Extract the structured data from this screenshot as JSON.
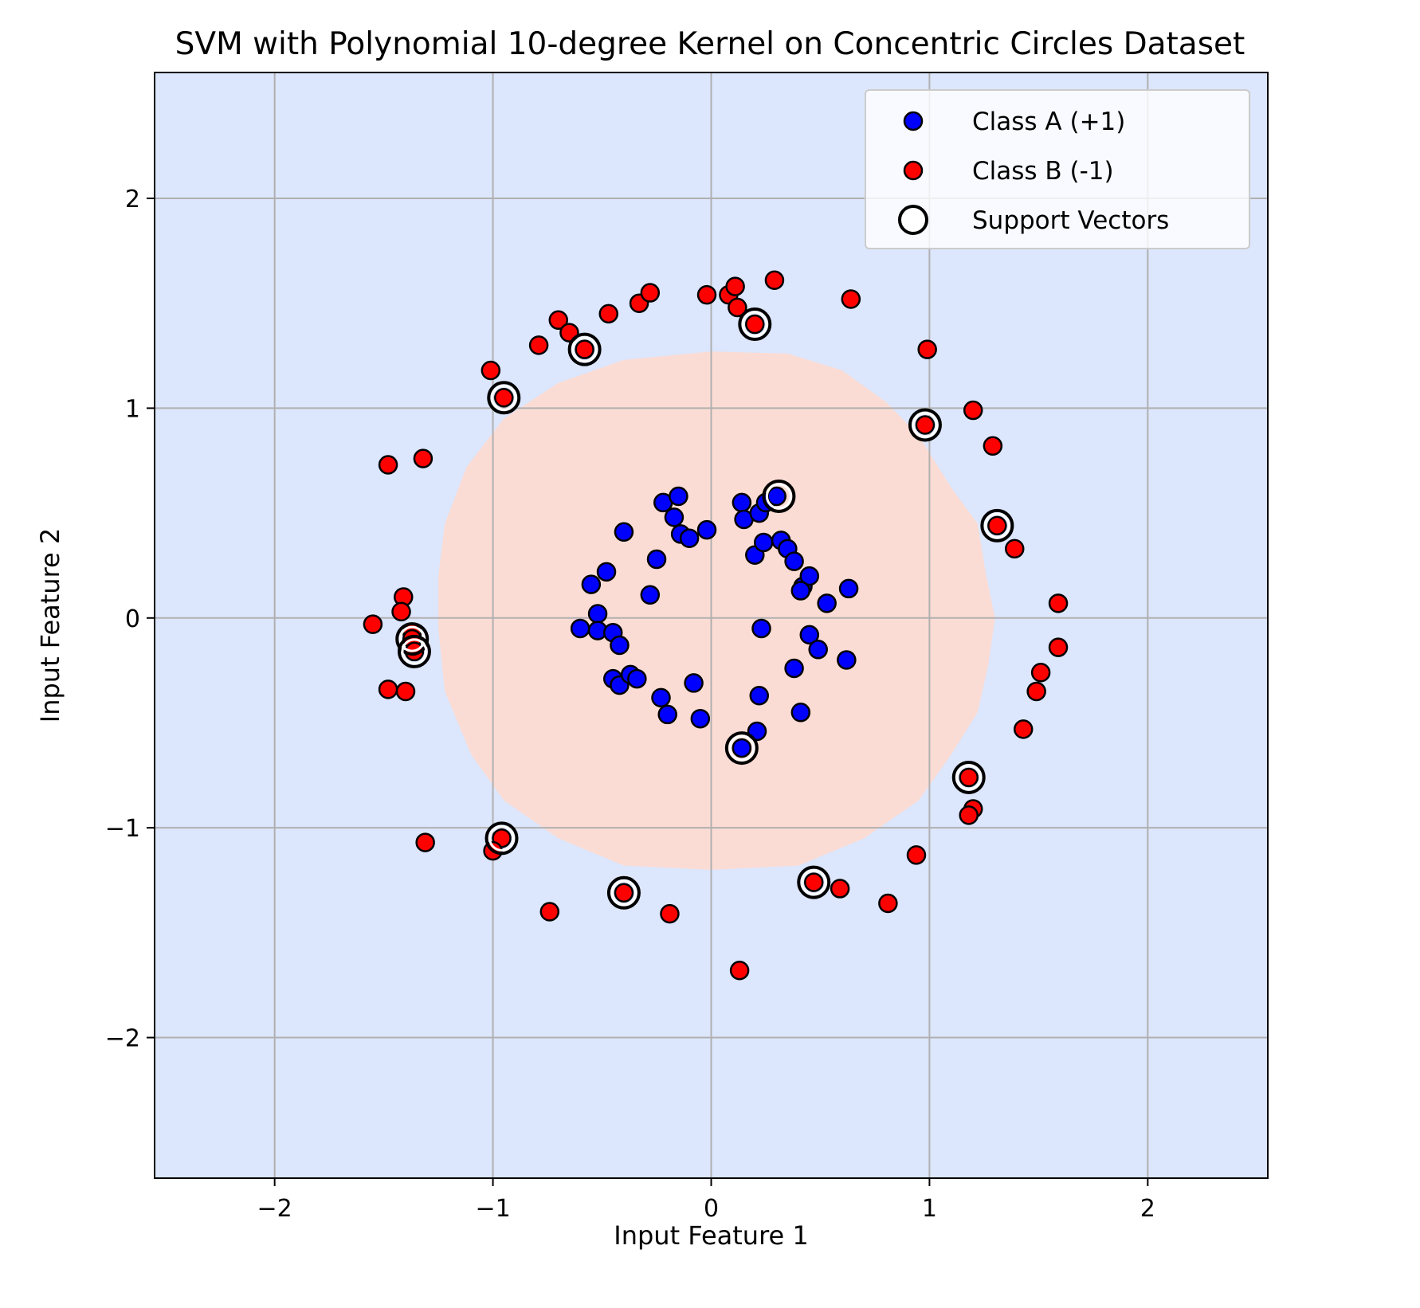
{
  "chart_data": {
    "type": "scatter",
    "title": "SVM with Polynomial 10-degree Kernel on Concentric Circles Dataset",
    "xlabel": "Input Feature 1",
    "ylabel": "Input Feature 2",
    "xlim": [
      -2.55,
      2.55
    ],
    "ylim": [
      -2.67,
      2.6
    ],
    "xticks": [
      -2,
      -1,
      0,
      1,
      2
    ],
    "yticks": [
      -2,
      -1,
      0,
      1,
      2
    ],
    "xtick_labels": [
      "−2",
      "−1",
      "0",
      "1",
      "2"
    ],
    "ytick_labels": [
      "−2",
      "−1",
      "0",
      "1",
      "2"
    ],
    "grid": true,
    "legend_position": "top-right",
    "colors": {
      "background_region": "#dce6fc",
      "decision_region": "#fbdcd4",
      "class_a": "#0000ff",
      "class_b": "#ff0000",
      "grid": "#b0b0b0"
    },
    "decision_region_boundary": [
      [
        0.0,
        1.27
      ],
      [
        0.35,
        1.26
      ],
      [
        0.6,
        1.18
      ],
      [
        0.8,
        1.03
      ],
      [
        0.95,
        0.87
      ],
      [
        1.1,
        0.62
      ],
      [
        1.22,
        0.45
      ],
      [
        1.26,
        0.2
      ],
      [
        1.3,
        0.0
      ],
      [
        1.27,
        -0.22
      ],
      [
        1.22,
        -0.45
      ],
      [
        1.1,
        -0.65
      ],
      [
        0.95,
        -0.87
      ],
      [
        0.7,
        -1.05
      ],
      [
        0.4,
        -1.18
      ],
      [
        0.0,
        -1.2
      ],
      [
        -0.4,
        -1.18
      ],
      [
        -0.7,
        -1.05
      ],
      [
        -0.95,
        -0.87
      ],
      [
        -1.1,
        -0.65
      ],
      [
        -1.22,
        -0.35
      ],
      [
        -1.25,
        -0.05
      ],
      [
        -1.25,
        0.2
      ],
      [
        -1.22,
        0.45
      ],
      [
        -1.12,
        0.72
      ],
      [
        -0.95,
        0.95
      ],
      [
        -0.7,
        1.12
      ],
      [
        -0.4,
        1.23
      ],
      [
        0.0,
        1.27
      ]
    ],
    "series": [
      {
        "name": "Class A (+1)",
        "points": [
          [
            -0.22,
            0.55
          ],
          [
            -0.15,
            0.58
          ],
          [
            -0.17,
            0.48
          ],
          [
            -0.14,
            0.4
          ],
          [
            -0.1,
            0.38
          ],
          [
            -0.02,
            0.42
          ],
          [
            0.14,
            0.55
          ],
          [
            0.15,
            0.47
          ],
          [
            0.22,
            0.5
          ],
          [
            0.25,
            0.55
          ],
          [
            0.3,
            0.58
          ],
          [
            0.2,
            0.3
          ],
          [
            0.24,
            0.36
          ],
          [
            0.32,
            0.37
          ],
          [
            0.35,
            0.33
          ],
          [
            0.38,
            0.27
          ],
          [
            0.42,
            0.15
          ],
          [
            0.45,
            0.2
          ],
          [
            0.41,
            0.13
          ],
          [
            0.53,
            0.07
          ],
          [
            0.63,
            0.14
          ],
          [
            -0.4,
            0.41
          ],
          [
            -0.25,
            0.28
          ],
          [
            -0.48,
            0.22
          ],
          [
            -0.55,
            0.16
          ],
          [
            -0.52,
            0.02
          ],
          [
            -0.28,
            0.11
          ],
          [
            -0.6,
            -0.05
          ],
          [
            -0.52,
            -0.06
          ],
          [
            -0.45,
            -0.07
          ],
          [
            -0.42,
            -0.13
          ],
          [
            0.23,
            -0.05
          ],
          [
            0.45,
            -0.08
          ],
          [
            0.49,
            -0.15
          ],
          [
            0.62,
            -0.2
          ],
          [
            -0.45,
            -0.29
          ],
          [
            -0.42,
            -0.32
          ],
          [
            -0.37,
            -0.27
          ],
          [
            -0.34,
            -0.29
          ],
          [
            -0.08,
            -0.31
          ],
          [
            0.38,
            -0.24
          ],
          [
            -0.23,
            -0.38
          ],
          [
            -0.2,
            -0.46
          ],
          [
            -0.05,
            -0.48
          ],
          [
            0.22,
            -0.37
          ],
          [
            0.41,
            -0.45
          ],
          [
            0.21,
            -0.54
          ],
          [
            0.14,
            -0.62
          ]
        ]
      },
      {
        "name": "Class B (-1)",
        "points": [
          [
            -0.7,
            1.42
          ],
          [
            -0.65,
            1.36
          ],
          [
            -0.58,
            1.28
          ],
          [
            -0.79,
            1.3
          ],
          [
            -0.47,
            1.45
          ],
          [
            -0.33,
            1.5
          ],
          [
            -0.28,
            1.55
          ],
          [
            -0.02,
            1.54
          ],
          [
            0.08,
            1.54
          ],
          [
            0.11,
            1.58
          ],
          [
            0.12,
            1.48
          ],
          [
            0.2,
            1.4
          ],
          [
            0.29,
            1.61
          ],
          [
            0.64,
            1.52
          ],
          [
            0.99,
            1.28
          ],
          [
            -1.01,
            1.18
          ],
          [
            -0.95,
            1.05
          ],
          [
            0.98,
            0.92
          ],
          [
            1.2,
            0.99
          ],
          [
            1.29,
            0.82
          ],
          [
            -1.48,
            0.73
          ],
          [
            -1.32,
            0.76
          ],
          [
            1.31,
            0.44
          ],
          [
            1.39,
            0.33
          ],
          [
            1.59,
            0.07
          ],
          [
            1.59,
            -0.14
          ],
          [
            -1.41,
            0.1
          ],
          [
            -1.42,
            0.03
          ],
          [
            -1.37,
            -0.07
          ],
          [
            -1.37,
            -0.1
          ],
          [
            -1.36,
            -0.16
          ],
          [
            -1.55,
            -0.03
          ],
          [
            -1.48,
            -0.34
          ],
          [
            -1.4,
            -0.35
          ],
          [
            1.51,
            -0.26
          ],
          [
            1.49,
            -0.35
          ],
          [
            1.43,
            -0.53
          ],
          [
            1.18,
            -0.76
          ],
          [
            1.2,
            -0.91
          ],
          [
            1.18,
            -0.94
          ],
          [
            0.94,
            -1.13
          ],
          [
            -1.31,
            -1.07
          ],
          [
            -0.96,
            -1.05
          ],
          [
            -1.0,
            -1.11
          ],
          [
            -0.4,
            -1.31
          ],
          [
            -0.74,
            -1.4
          ],
          [
            -0.19,
            -1.41
          ],
          [
            0.47,
            -1.26
          ],
          [
            0.59,
            -1.29
          ],
          [
            0.81,
            -1.36
          ],
          [
            0.13,
            -1.68
          ]
        ]
      },
      {
        "name": "Support Vectors",
        "points": [
          [
            -0.58,
            1.28
          ],
          [
            0.2,
            1.4
          ],
          [
            -0.95,
            1.05
          ],
          [
            0.98,
            0.92
          ],
          [
            0.31,
            0.58
          ],
          [
            1.31,
            0.44
          ],
          [
            -1.37,
            -0.1
          ],
          [
            -1.36,
            -0.16
          ],
          [
            0.14,
            -0.62
          ],
          [
            1.18,
            -0.76
          ],
          [
            -0.96,
            -1.05
          ],
          [
            -0.4,
            -1.31
          ],
          [
            0.47,
            -1.26
          ]
        ]
      }
    ]
  }
}
